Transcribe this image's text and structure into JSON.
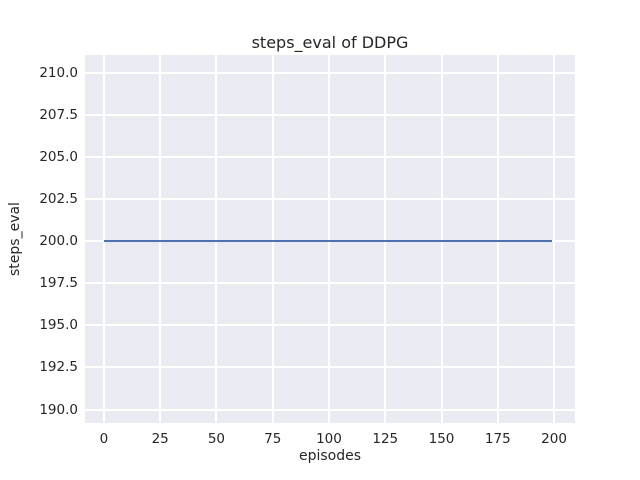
{
  "chart_data": {
    "type": "line",
    "title": "steps_eval of DDPG",
    "xlabel": "episodes",
    "ylabel": "steps_eval",
    "series": [
      {
        "name": "steps_eval",
        "color": "#4c72b0",
        "x": [
          0,
          199
        ],
        "y": [
          200,
          200
        ]
      }
    ],
    "xticks": [
      0,
      25,
      50,
      75,
      100,
      125,
      150,
      175,
      200
    ],
    "yticks": [
      190.0,
      192.5,
      195.0,
      197.5,
      200.0,
      202.5,
      205.0,
      207.5,
      210.0
    ],
    "ytick_decimals": 1,
    "xlim": [
      -8.4,
      209.3
    ],
    "ylim": [
      189.2,
      211.05
    ],
    "grid": true,
    "legend": false,
    "colors": {
      "figure_background": "#ffffff",
      "plot_background": "#eaeaf2",
      "grid": "#ffffff",
      "line": "#4c72b0",
      "text": "#262626"
    }
  }
}
